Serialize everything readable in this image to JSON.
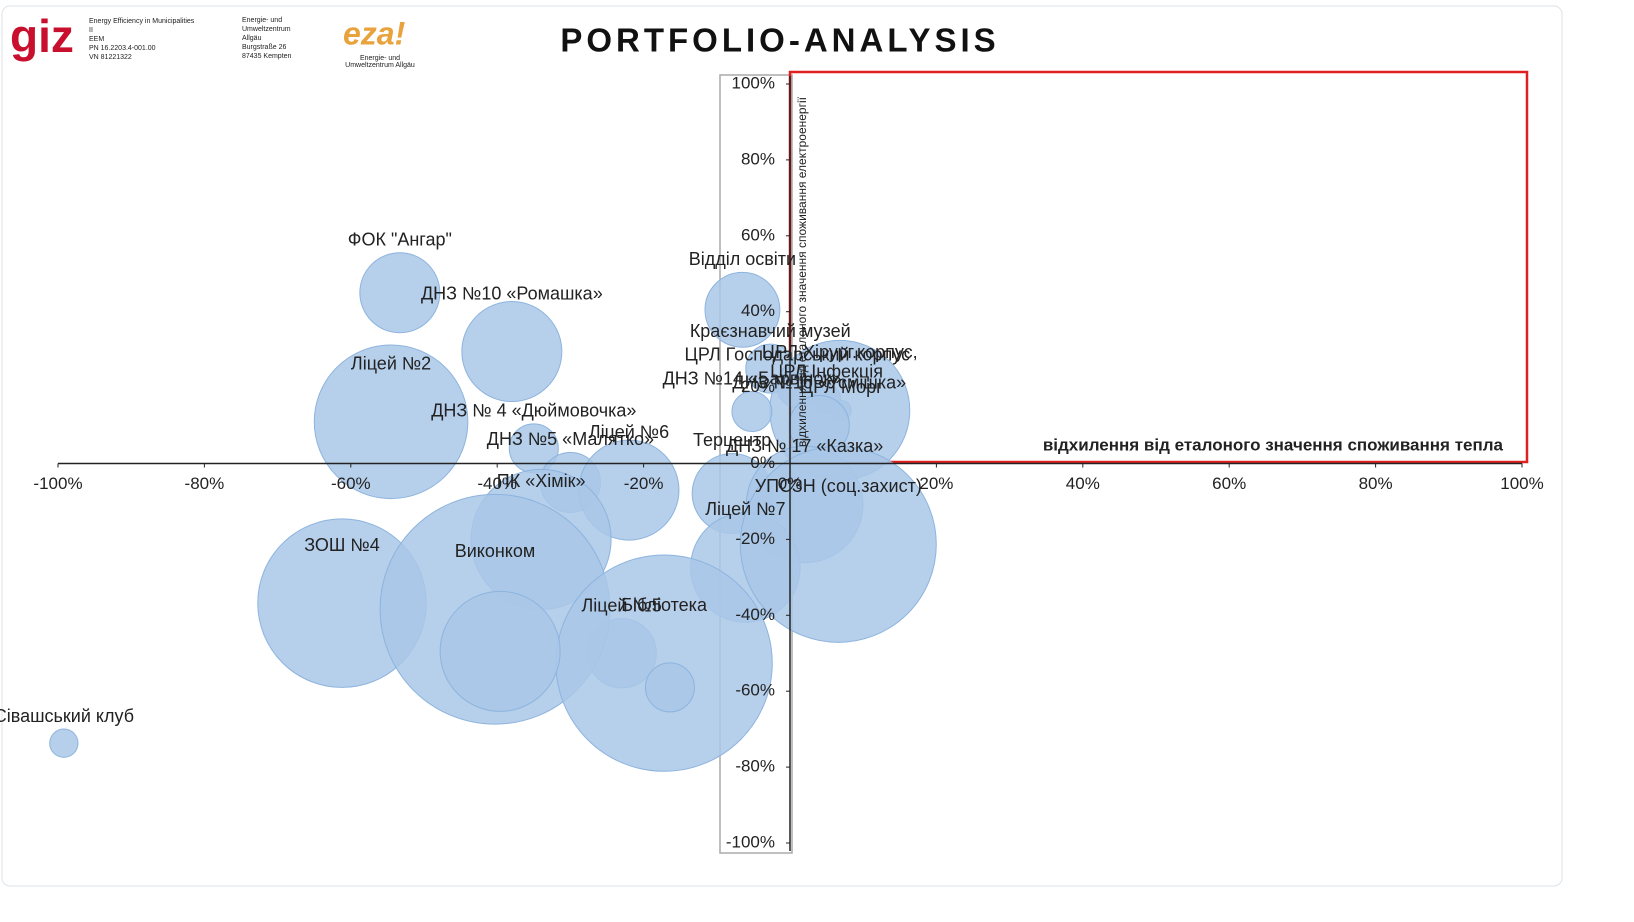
{
  "header": {
    "logo_left": "giz",
    "left_lines": [
      "Energy Efficiency in Municipalities",
      "II",
      "EEM",
      "PN 16.2203.4-001.00",
      "VN 81221322"
    ],
    "mid_lines": [
      "Energie- und",
      "Umweltzentrum",
      "Allgäu",
      "Burgstraße 26",
      "87435 Kempten"
    ],
    "logo_right": "eza!",
    "right_lines": [
      "Energie- und",
      "Umweltzentrum Allgäu"
    ]
  },
  "chart_data": {
    "type": "bubble",
    "title": "PORTFOLIO-ANALYSIS",
    "x_label": "відхилення від еталоного значення споживання тепла",
    "y_label": "відхилення від еталоного значення споживання електроенергії",
    "labels": [
      "ФОК \"Ангар\"",
      "ДНЗ №10 «Ромашка»",
      "Ліцей №2",
      "ДНЗ № 4 «Дюймовочка»",
      "Відділ освіти",
      "Краєзнавчий музей",
      "ЦРЛ Господарський корпус",
      "ЦРЛ Інфекція",
      "ЦРЛ Морг",
      "ЦРЛ Хірург.корпус,",
      "ДНЗ №16 «Усмішка»",
      "ДНЗ №14 «Барвінок»",
      "ДНЗ №5 «Малятко»",
      "Ліцей №6",
      "Терцентр",
      "ДНЗ № 17 «Казка»",
      "ЗОШ №4",
      "ПК «Хімік»",
      "Ліцей №5",
      "Ліцей №7",
      "Виконком",
      "УПСЗН (соц.захист)",
      "Бібліотека",
      "Сівашський клуб",
      null,
      null
    ],
    "x": [
      -53.3,
      -38,
      -54.5,
      -35,
      -6.5,
      -2.7,
      1,
      5,
      7,
      6.8,
      4,
      -5.2,
      -30,
      -22,
      -7.9,
      2,
      -61.2,
      -34,
      -23,
      -6.1,
      -40.3,
      6.6,
      -17.2,
      -99.2,
      -39.6,
      -16.4
    ],
    "values": [
      45,
      29.5,
      11,
      4,
      40.5,
      25,
      20,
      17,
      14,
      14,
      10,
      13.7,
      -5,
      -7,
      -7.9,
      -10.8,
      -36.8,
      -20,
      -50,
      -27.4,
      -38.4,
      -21.3,
      -52.6,
      -73.7,
      -49.5,
      -59
    ],
    "sizes": [
      16,
      25,
      59,
      6,
      14,
      6,
      4,
      2,
      1,
      49,
      9,
      4,
      9,
      25,
      16,
      34,
      71,
      49,
      12,
      30,
      132,
      96,
      117,
      2,
      36,
      6
    ],
    "color": "#a9c7e8",
    "xlim": [
      -100,
      100
    ],
    "ylim": [
      -100,
      100
    ],
    "xticks": [
      {
        "value": -100,
        "label": "-100%"
      },
      {
        "value": -80,
        "label": "-80%"
      },
      {
        "value": -60,
        "label": "-60%"
      },
      {
        "value": -40,
        "label": "-40%"
      },
      {
        "value": -20,
        "label": "-20%"
      },
      {
        "value": 0,
        "label": "0%"
      },
      {
        "value": 20,
        "label": "20%"
      },
      {
        "value": 40,
        "label": "40%"
      },
      {
        "value": 60,
        "label": "60%"
      },
      {
        "value": 80,
        "label": "80%"
      },
      {
        "value": 100,
        "label": "100%"
      }
    ],
    "yticks": [
      {
        "value": -100,
        "label": "-100%"
      },
      {
        "value": -80,
        "label": "-80%"
      },
      {
        "value": -60,
        "label": "-60%"
      },
      {
        "value": -40,
        "label": "-40%"
      },
      {
        "value": -20,
        "label": "-20%"
      },
      {
        "value": 0,
        "label": "0%"
      },
      {
        "value": 20,
        "label": "20%"
      },
      {
        "value": 40,
        "label": "40%"
      },
      {
        "value": 60,
        "label": "60%"
      },
      {
        "value": 80,
        "label": "80%"
      },
      {
        "value": 100,
        "label": "100%"
      }
    ]
  }
}
